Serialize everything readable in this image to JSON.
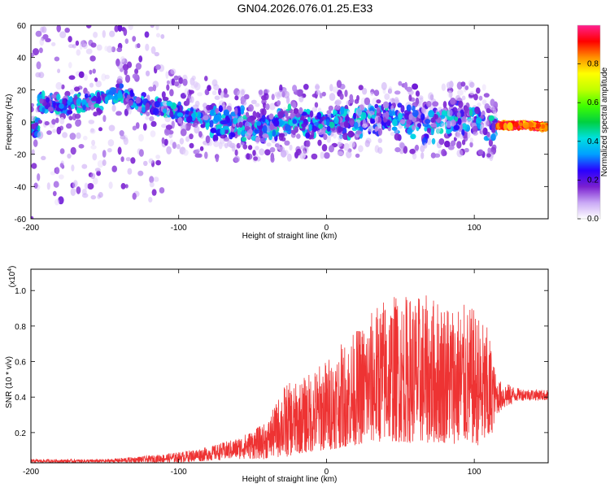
{
  "title": "GN04.2026.076.01.25.E33",
  "chart_data": [
    {
      "type": "heatmap",
      "title": "GN04.2026.076.01.25.E33",
      "xlabel": "Height of straight line (km)",
      "ylabel": "Frequency (Hz)",
      "xlim": [
        -200,
        150
      ],
      "ylim": [
        -60,
        60
      ],
      "xticks": [
        "-200",
        "-100",
        "0",
        "100"
      ],
      "yticks": [
        "60",
        "40",
        "20",
        "0",
        "-20",
        "-40",
        "-60"
      ],
      "colorbar": {
        "label": "Normalized spectral amplitude",
        "range": [
          0,
          1
        ],
        "ticks": [
          "0.0",
          "0.2",
          "0.4",
          "0.6",
          "0.8"
        ],
        "colors": [
          "#ffffff",
          "#c9a8f5",
          "#7a1fd0",
          "#2a00ff",
          "#00a0ff",
          "#00e0e0",
          "#00d040",
          "#40ff00",
          "#c0ff00",
          "#ffff00",
          "#ff9000",
          "#ff0000",
          "#ff2090"
        ]
      },
      "ridge": [
        {
          "x": -195,
          "y": 12
        },
        {
          "x": -180,
          "y": 10
        },
        {
          "x": -165,
          "y": 12
        },
        {
          "x": -150,
          "y": 14
        },
        {
          "x": -140,
          "y": 18
        },
        {
          "x": -130,
          "y": 13
        },
        {
          "x": -120,
          "y": 10
        },
        {
          "x": -110,
          "y": 8
        },
        {
          "x": -100,
          "y": 6
        },
        {
          "x": -90,
          "y": 4
        },
        {
          "x": -80,
          "y": 2
        },
        {
          "x": -70,
          "y": 0
        },
        {
          "x": -60,
          "y": 0
        },
        {
          "x": -50,
          "y": -2
        },
        {
          "x": -40,
          "y": -2
        },
        {
          "x": -30,
          "y": -1
        },
        {
          "x": -20,
          "y": 0
        },
        {
          "x": -10,
          "y": 0
        },
        {
          "x": 0,
          "y": 0
        },
        {
          "x": 10,
          "y": 2
        },
        {
          "x": 20,
          "y": 0
        },
        {
          "x": 30,
          "y": 2
        },
        {
          "x": 40,
          "y": 2
        },
        {
          "x": 50,
          "y": 2
        },
        {
          "x": 60,
          "y": 0
        },
        {
          "x": 70,
          "y": 0
        },
        {
          "x": 80,
          "y": 1
        },
        {
          "x": 90,
          "y": 2
        },
        {
          "x": 100,
          "y": 2
        },
        {
          "x": 110,
          "y": 0
        },
        {
          "x": 115,
          "y": -2
        },
        {
          "x": 125,
          "y": -2
        },
        {
          "x": 135,
          "y": -2
        },
        {
          "x": 145,
          "y": -3
        }
      ],
      "grid": false
    },
    {
      "type": "line",
      "xlabel": "Height of straight line (km)",
      "ylabel": "SNR (10 * v/v)",
      "y_multiplier": "(x10",
      "y_multiplier_exp": "4",
      "xlim": [
        -200,
        150
      ],
      "ylim": [
        0.03,
        1.12
      ],
      "xticks": [
        "-200",
        "-100",
        "0",
        "100"
      ],
      "yticks": [
        "0.2",
        "0.4",
        "0.6",
        "0.8",
        "1.0"
      ],
      "series_color": "#ee3333",
      "envelope": [
        {
          "x": -200,
          "lo": 0.03,
          "hi": 0.05
        },
        {
          "x": -150,
          "lo": 0.03,
          "hi": 0.05
        },
        {
          "x": -120,
          "lo": 0.03,
          "hi": 0.07
        },
        {
          "x": -100,
          "lo": 0.03,
          "hi": 0.09
        },
        {
          "x": -80,
          "lo": 0.04,
          "hi": 0.12
        },
        {
          "x": -60,
          "lo": 0.05,
          "hi": 0.17
        },
        {
          "x": -40,
          "lo": 0.05,
          "hi": 0.26
        },
        {
          "x": -28,
          "lo": 0.06,
          "hi": 0.48
        },
        {
          "x": -20,
          "lo": 0.08,
          "hi": 0.48
        },
        {
          "x": 0,
          "lo": 0.1,
          "hi": 0.62
        },
        {
          "x": 20,
          "lo": 0.13,
          "hi": 0.78
        },
        {
          "x": 40,
          "lo": 0.15,
          "hi": 0.98
        },
        {
          "x": 60,
          "lo": 0.14,
          "hi": 0.98
        },
        {
          "x": 80,
          "lo": 0.14,
          "hi": 0.96
        },
        {
          "x": 100,
          "lo": 0.13,
          "hi": 0.9
        },
        {
          "x": 110,
          "lo": 0.12,
          "hi": 0.78
        },
        {
          "x": 115,
          "lo": 0.3,
          "hi": 0.5
        },
        {
          "x": 130,
          "lo": 0.38,
          "hi": 0.45
        },
        {
          "x": 150,
          "lo": 0.38,
          "hi": 0.44
        }
      ],
      "grid": false
    }
  ]
}
